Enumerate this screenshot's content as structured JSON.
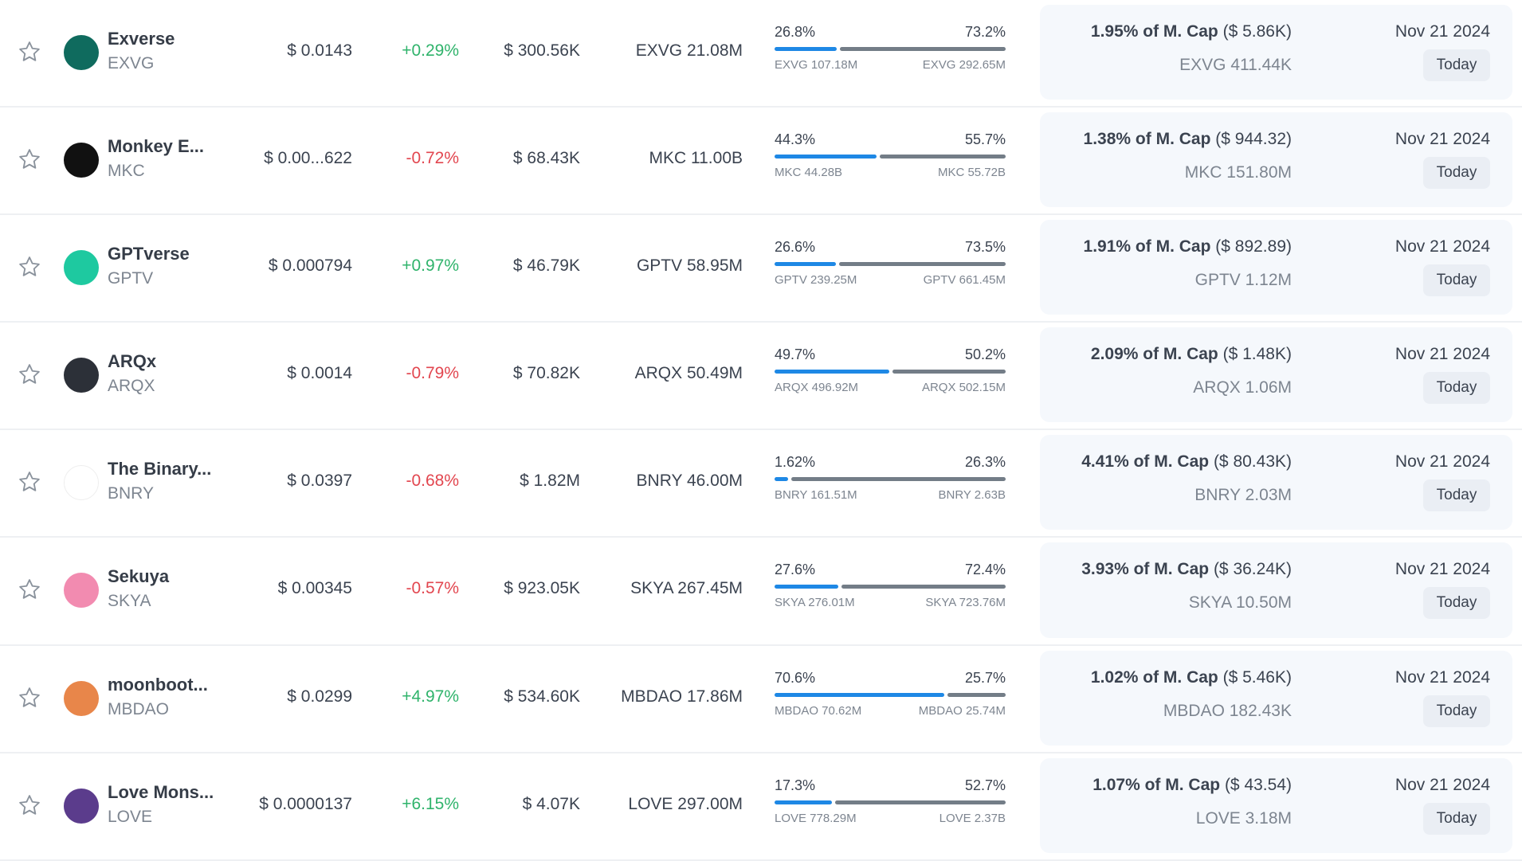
{
  "rows": [
    {
      "name": "Exverse",
      "symbol": "EXVG",
      "price": "$ 0.0143",
      "change": "+0.29%",
      "change_dir": "up",
      "volume": "$ 300.56K",
      "supply": "EXVG 21.08M",
      "left_pct": "26.8%",
      "right_pct": "73.2%",
      "left_amt": "EXVG 107.18M",
      "right_amt": "EXVG 292.65M",
      "mcap_pct": "1.95% of M. Cap",
      "mcap_usd": "($ 5.86K)",
      "unlock_amt": "EXVG 411.44K",
      "date": "Nov 21 2024",
      "badge": "Today",
      "color": "#0f6b5e",
      "fill": 0.268
    },
    {
      "name": "Monkey E...",
      "symbol": "MKC",
      "price": "$ 0.00...622",
      "change": "-0.72%",
      "change_dir": "down",
      "volume": "$ 68.43K",
      "supply": "MKC 11.00B",
      "left_pct": "44.3%",
      "right_pct": "55.7%",
      "left_amt": "MKC 44.28B",
      "right_amt": "MKC 55.72B",
      "mcap_pct": "1.38% of M. Cap",
      "mcap_usd": "($ 944.32)",
      "unlock_amt": "MKC 151.80M",
      "date": "Nov 21 2024",
      "badge": "Today",
      "color": "#111111",
      "fill": 0.443
    },
    {
      "name": "GPTverse",
      "symbol": "GPTV",
      "price": "$ 0.000794",
      "change": "+0.97%",
      "change_dir": "up",
      "volume": "$ 46.79K",
      "supply": "GPTV 58.95M",
      "left_pct": "26.6%",
      "right_pct": "73.5%",
      "left_amt": "GPTV 239.25M",
      "right_amt": "GPTV 661.45M",
      "mcap_pct": "1.91% of M. Cap",
      "mcap_usd": "($ 892.89)",
      "unlock_amt": "GPTV 1.12M",
      "date": "Nov 21 2024",
      "badge": "Today",
      "color": "#1ec9a0",
      "fill": 0.266
    },
    {
      "name": "ARQx",
      "symbol": "ARQX",
      "price": "$ 0.0014",
      "change": "-0.79%",
      "change_dir": "down",
      "volume": "$ 70.82K",
      "supply": "ARQX 50.49M",
      "left_pct": "49.7%",
      "right_pct": "50.2%",
      "left_amt": "ARQX 496.92M",
      "right_amt": "ARQX 502.15M",
      "mcap_pct": "2.09% of M. Cap",
      "mcap_usd": "($ 1.48K)",
      "unlock_amt": "ARQX 1.06M",
      "date": "Nov 21 2024",
      "badge": "Today",
      "color": "#2c3038",
      "fill": 0.497
    },
    {
      "name": "The Binary...",
      "symbol": "BNRY",
      "price": "$ 0.0397",
      "change": "-0.68%",
      "change_dir": "down",
      "volume": "$ 1.82M",
      "supply": "BNRY 46.00M",
      "left_pct": "1.62%",
      "right_pct": "26.3%",
      "left_amt": "BNRY 161.51M",
      "right_amt": "BNRY 2.63B",
      "mcap_pct": "4.41% of M. Cap",
      "mcap_usd": "($ 80.43K)",
      "unlock_amt": "BNRY 2.03M",
      "date": "Nov 21 2024",
      "badge": "Today",
      "color": "#ffffff",
      "fill": 0.058
    },
    {
      "name": "Sekuya",
      "symbol": "SKYA",
      "price": "$ 0.00345",
      "change": "-0.57%",
      "change_dir": "down",
      "volume": "$ 923.05K",
      "supply": "SKYA 267.45M",
      "left_pct": "27.6%",
      "right_pct": "72.4%",
      "left_amt": "SKYA 276.01M",
      "right_amt": "SKYA 723.76M",
      "mcap_pct": "3.93% of M. Cap",
      "mcap_usd": "($ 36.24K)",
      "unlock_amt": "SKYA 10.50M",
      "date": "Nov 21 2024",
      "badge": "Today",
      "color": "#f28bb0",
      "fill": 0.276
    },
    {
      "name": "moonboot...",
      "symbol": "MBDAO",
      "price": "$ 0.0299",
      "change": "+4.97%",
      "change_dir": "up",
      "volume": "$ 534.60K",
      "supply": "MBDAO 17.86M",
      "left_pct": "70.6%",
      "right_pct": "25.7%",
      "left_amt": "MBDAO 70.62M",
      "right_amt": "MBDAO 25.74M",
      "mcap_pct": "1.02% of M. Cap",
      "mcap_usd": "($ 5.46K)",
      "unlock_amt": "MBDAO 182.43K",
      "date": "Nov 21 2024",
      "badge": "Today",
      "color": "#e8864a",
      "fill": 0.733
    },
    {
      "name": "Love Mons...",
      "symbol": "LOVE",
      "price": "$ 0.0000137",
      "change": "+6.15%",
      "change_dir": "up",
      "volume": "$ 4.07K",
      "supply": "LOVE 297.00M",
      "left_pct": "17.3%",
      "right_pct": "52.7%",
      "left_amt": "LOVE 778.29M",
      "right_amt": "LOVE 2.37B",
      "mcap_pct": "1.07% of M. Cap",
      "mcap_usd": "($ 43.54)",
      "unlock_amt": "LOVE 3.18M",
      "date": "Nov 21 2024",
      "badge": "Today",
      "color": "#5b3c8c",
      "fill": 0.247
    }
  ]
}
